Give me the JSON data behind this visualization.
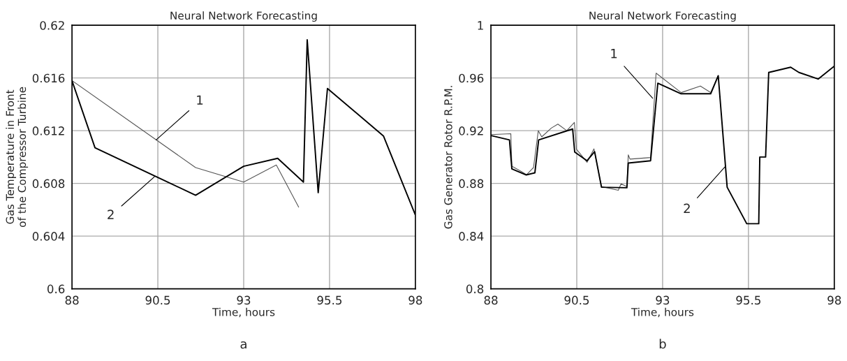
{
  "chart_data": [
    {
      "type": "line",
      "title": "Neural Network Forecasting",
      "xlabel": "Time, hours",
      "ylabel": "Gas Temperature in Front\nof the Compressor Turbine",
      "xlim": [
        88,
        98
      ],
      "xticks": [
        88,
        90.5,
        93,
        95.5,
        98
      ],
      "ylim": [
        0.6,
        0.62
      ],
      "yticks": [
        0.6,
        0.604,
        0.608,
        0.612,
        0.616,
        0.62
      ],
      "grid": true,
      "series": [
        {
          "color": "#555555",
          "x": [
            88,
            91.6,
            93,
            93.95,
            94.6
          ],
          "values": [
            0.6158,
            0.6092,
            0.6081,
            0.6094,
            0.6062
          ]
        },
        {
          "color": "#000000",
          "x": [
            88,
            88.67,
            91.6,
            93,
            93.99,
            94.74,
            94.85,
            95.17,
            95.44,
            97.07,
            98
          ],
          "values": [
            0.6158,
            0.6107,
            0.6071,
            0.6093,
            0.6099,
            0.6081,
            0.6189,
            0.6073,
            0.6152,
            0.6116,
            0.6056
          ]
        }
      ],
      "annotations": [
        {
          "text": "1",
          "x": 90.45,
          "y": 0.6113
        },
        {
          "text": "2",
          "x": 90.4,
          "y": 0.6085
        },
        "a"
      ]
    },
    {
      "type": "line",
      "title": "Neural Network Forecasting",
      "xlabel": "Time, hours",
      "ylabel": "Gas Generator Rotor R.P.M.",
      "xlim": [
        88,
        98
      ],
      "xticks": [
        88,
        90.5,
        93,
        95.5,
        98
      ],
      "ylim": [
        0.8,
        1
      ],
      "yticks": [
        0.8,
        0.84,
        0.88,
        0.92,
        0.96,
        1
      ],
      "grid": true,
      "series": [
        {
          "color": "#555555",
          "x": [
            88,
            88.58,
            88.61,
            88.89,
            89.04,
            89.24,
            89.38,
            89.48,
            89.76,
            89.95,
            90.21,
            90.43,
            90.49,
            90.8,
            91.0,
            91.22,
            91.71,
            91.79,
            91.96,
            92.0,
            92.05,
            92.65,
            92.81,
            93.54,
            94.1,
            94.4,
            94.62
          ],
          "values": [
            0.917,
            0.9177,
            0.893,
            0.889,
            0.8866,
            0.892,
            0.92,
            0.9153,
            0.922,
            0.925,
            0.92,
            0.9263,
            0.906,
            0.896,
            0.9062,
            0.8776,
            0.8748,
            0.8797,
            0.8776,
            0.9017,
            0.8984,
            0.8996,
            0.9637,
            0.9489,
            0.9539,
            0.9489,
            0.9617
          ]
        },
        {
          "color": "#000000",
          "x": [
            88,
            88.54,
            88.61,
            89.03,
            89.28,
            89.39,
            90.38,
            90.44,
            90.8,
            91.02,
            91.22,
            91.96,
            92.0,
            92.65,
            92.86,
            93.54,
            94.4,
            94.62,
            94.88,
            95.45,
            95.8,
            95.83,
            96.0,
            96.09,
            96.73,
            96.97,
            97.53,
            98
          ],
          "values": [
            0.9163,
            0.913,
            0.891,
            0.8864,
            0.888,
            0.913,
            0.9213,
            0.9038,
            0.8972,
            0.9041,
            0.8771,
            0.8767,
            0.8954,
            0.8972,
            0.956,
            0.948,
            0.948,
            0.9617,
            0.8771,
            0.8494,
            0.8494,
            0.9,
            0.9,
            0.9642,
            0.9682,
            0.9642,
            0.9592,
            0.969
          ]
        }
      ],
      "annotations": [
        {
          "text": "1",
          "x": 92.71,
          "y": 0.9446
        },
        {
          "text": "2",
          "x": 94.84,
          "y": 0.8933
        },
        "b"
      ]
    }
  ]
}
